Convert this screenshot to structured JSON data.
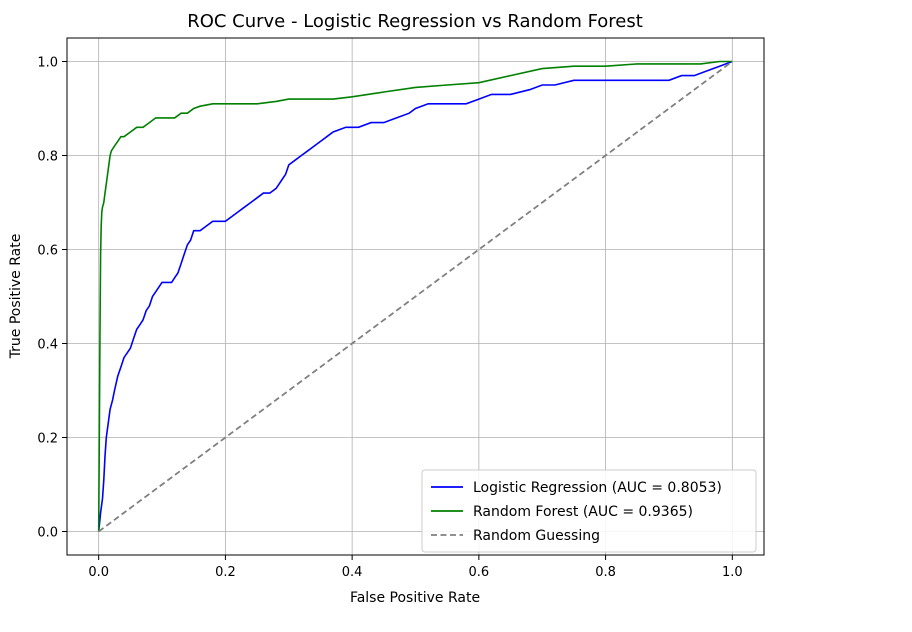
{
  "chart_data": {
    "type": "line",
    "title": "ROC Curve - Logistic Regression vs Random Forest",
    "xlabel": "False Positive Rate",
    "ylabel": "True Positive Rate",
    "xlim": [
      -0.05,
      1.05
    ],
    "ylim": [
      -0.05,
      1.05
    ],
    "xticks": [
      0.0,
      0.2,
      0.4,
      0.6,
      0.8,
      1.0
    ],
    "yticks": [
      0.0,
      0.2,
      0.4,
      0.6,
      0.8,
      1.0
    ],
    "xtick_labels": [
      "0.0",
      "0.2",
      "0.4",
      "0.6",
      "0.8",
      "1.0"
    ],
    "ytick_labels": [
      "0.0",
      "0.2",
      "0.4",
      "0.6",
      "0.8",
      "1.0"
    ],
    "grid": true,
    "legend_position": "lower-right",
    "series": [
      {
        "name": "Logistic Regression (AUC = 0.8053)",
        "color": "#0000ff",
        "style": "solid",
        "x": [
          0.0,
          0.003,
          0.006,
          0.008,
          0.01,
          0.012,
          0.015,
          0.018,
          0.022,
          0.025,
          0.03,
          0.035,
          0.04,
          0.045,
          0.05,
          0.055,
          0.06,
          0.065,
          0.07,
          0.075,
          0.08,
          0.085,
          0.09,
          0.095,
          0.1,
          0.105,
          0.11,
          0.115,
          0.12,
          0.125,
          0.13,
          0.135,
          0.14,
          0.145,
          0.15,
          0.16,
          0.17,
          0.18,
          0.19,
          0.2,
          0.21,
          0.22,
          0.23,
          0.24,
          0.25,
          0.26,
          0.27,
          0.28,
          0.285,
          0.29,
          0.295,
          0.3,
          0.31,
          0.32,
          0.33,
          0.34,
          0.35,
          0.36,
          0.37,
          0.39,
          0.41,
          0.43,
          0.45,
          0.47,
          0.49,
          0.5,
          0.52,
          0.55,
          0.58,
          0.6,
          0.62,
          0.65,
          0.68,
          0.7,
          0.72,
          0.75,
          0.8,
          0.85,
          0.9,
          0.92,
          0.94,
          0.96,
          0.98,
          1.0
        ],
        "y": [
          0.0,
          0.04,
          0.07,
          0.11,
          0.16,
          0.2,
          0.23,
          0.26,
          0.28,
          0.3,
          0.33,
          0.35,
          0.37,
          0.38,
          0.39,
          0.41,
          0.43,
          0.44,
          0.45,
          0.47,
          0.48,
          0.5,
          0.51,
          0.52,
          0.53,
          0.53,
          0.53,
          0.53,
          0.54,
          0.55,
          0.57,
          0.59,
          0.61,
          0.62,
          0.64,
          0.64,
          0.65,
          0.66,
          0.66,
          0.66,
          0.67,
          0.68,
          0.69,
          0.7,
          0.71,
          0.72,
          0.72,
          0.73,
          0.74,
          0.75,
          0.76,
          0.78,
          0.79,
          0.8,
          0.81,
          0.82,
          0.83,
          0.84,
          0.85,
          0.86,
          0.86,
          0.87,
          0.87,
          0.88,
          0.89,
          0.9,
          0.91,
          0.91,
          0.91,
          0.92,
          0.93,
          0.93,
          0.94,
          0.95,
          0.95,
          0.96,
          0.96,
          0.96,
          0.96,
          0.97,
          0.97,
          0.98,
          0.99,
          1.0
        ]
      },
      {
        "name": "Random Forest (AUC = 0.9365)",
        "color": "#008000",
        "style": "solid",
        "x": [
          0.0,
          0.001,
          0.002,
          0.003,
          0.004,
          0.005,
          0.006,
          0.008,
          0.01,
          0.012,
          0.015,
          0.018,
          0.02,
          0.025,
          0.03,
          0.035,
          0.04,
          0.05,
          0.06,
          0.07,
          0.08,
          0.09,
          0.1,
          0.12,
          0.13,
          0.14,
          0.15,
          0.16,
          0.18,
          0.2,
          0.25,
          0.28,
          0.3,
          0.37,
          0.4,
          0.45,
          0.5,
          0.55,
          0.6,
          0.65,
          0.7,
          0.75,
          0.8,
          0.85,
          0.9,
          0.95,
          0.98,
          1.0
        ],
        "y": [
          0.0,
          0.2,
          0.4,
          0.59,
          0.65,
          0.68,
          0.69,
          0.7,
          0.72,
          0.74,
          0.77,
          0.8,
          0.81,
          0.82,
          0.83,
          0.84,
          0.84,
          0.85,
          0.86,
          0.86,
          0.87,
          0.88,
          0.88,
          0.88,
          0.89,
          0.89,
          0.9,
          0.905,
          0.91,
          0.91,
          0.91,
          0.915,
          0.92,
          0.92,
          0.925,
          0.935,
          0.945,
          0.95,
          0.955,
          0.97,
          0.985,
          0.99,
          0.99,
          0.995,
          0.995,
          0.995,
          1.0,
          1.0
        ]
      },
      {
        "name": "Random Guessing",
        "color": "#808080",
        "style": "dashed",
        "x": [
          0.0,
          1.0
        ],
        "y": [
          0.0,
          1.0
        ]
      }
    ]
  }
}
